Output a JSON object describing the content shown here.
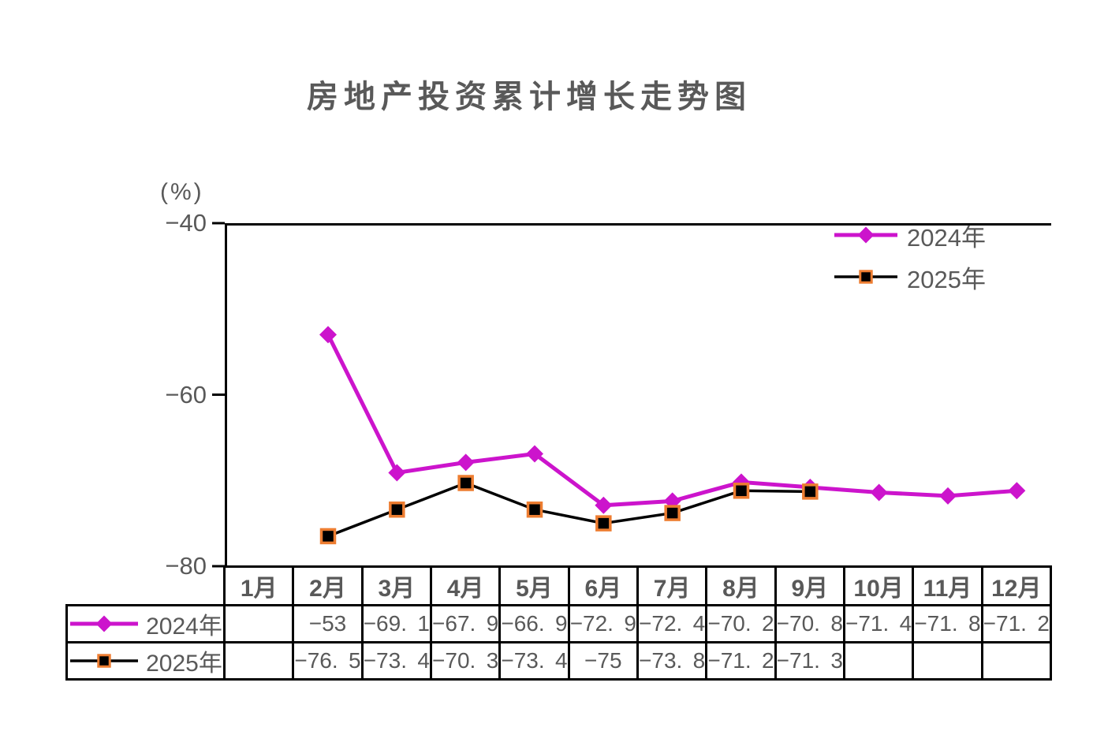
{
  "title": "房地产投资累计增长走势图",
  "y_axis_unit": "(%)",
  "colors": {
    "series_2024": "#cc14cc",
    "series_2025": "#000000",
    "marker_border_2025": "#ed7d31",
    "axis": "#000000",
    "text": "#595959"
  },
  "chart_data": {
    "type": "line",
    "title": "房地产投资累计增长走势图",
    "ylabel": "(%)",
    "ylim": [
      -80,
      -40
    ],
    "y_ticks": [
      -40,
      -60,
      -80
    ],
    "grid": false,
    "legend_position": "top-right-inside",
    "data_table_shown": true,
    "categories": [
      "1月",
      "2月",
      "3月",
      "4月",
      "5月",
      "6月",
      "7月",
      "8月",
      "9月",
      "10月",
      "11月",
      "12月"
    ],
    "series": [
      {
        "name": "2024年",
        "color": "#cc14cc",
        "marker": "diamond",
        "values": [
          null,
          -53,
          -69.1,
          -67.9,
          -66.9,
          -72.9,
          -72.4,
          -70.2,
          -70.8,
          -71.4,
          -71.8,
          -71.2
        ]
      },
      {
        "name": "2025年",
        "color": "#000000",
        "marker": "square",
        "marker_fill": "#000000",
        "marker_border": "#ed7d31",
        "values": [
          null,
          -76.5,
          -73.4,
          -70.3,
          -73.4,
          -75,
          -73.8,
          -71.2,
          -71.3,
          null,
          null,
          null
        ]
      }
    ]
  }
}
